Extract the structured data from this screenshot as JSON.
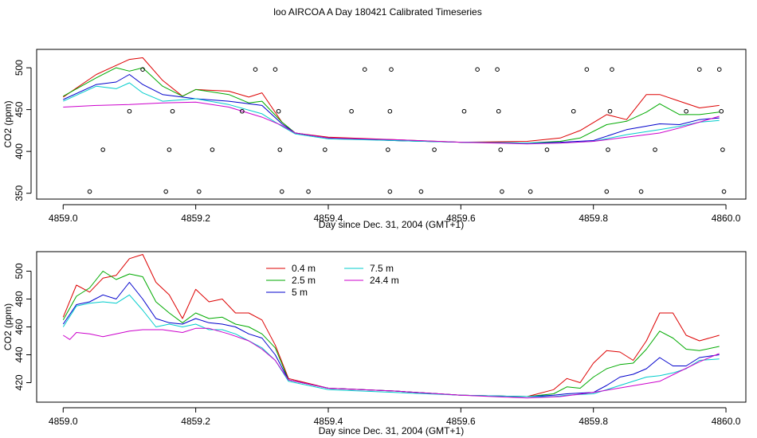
{
  "page_title": "loo AIRCOA A  Day 180421  Calibrated Timeseries",
  "chart_data": [
    {
      "type": "line",
      "title": "loo AIRCOA A  Day 180421  Calibrated Timeseries",
      "xlabel": "Day since Dec. 31, 2004 (GMT+1)",
      "ylabel": "CO2 (ppm)",
      "xlim": [
        4858.96,
        4860.03
      ],
      "ylim": [
        343,
        522
      ],
      "xticks": [
        4859.0,
        4859.2,
        4859.4,
        4859.6,
        4859.8,
        4860.0
      ],
      "xtick_labels": [
        "4859.0",
        "4859.2",
        "4859.4",
        "4859.6",
        "4859.8",
        "4860.0"
      ],
      "yticks": [
        350,
        400,
        450,
        500
      ],
      "ytick_labels": [
        "350",
        "400",
        "450",
        "500"
      ],
      "grid": false,
      "series": [
        {
          "name": "0.4 m",
          "color": "#dd0000",
          "x": [
            4859.0,
            4859.05,
            4859.1,
            4859.12,
            4859.15,
            4859.18,
            4859.2,
            4859.25,
            4859.28,
            4859.3,
            4859.33,
            4859.35,
            4859.4,
            4859.5,
            4859.6,
            4859.7,
            4859.75,
            4859.78,
            4859.82,
            4859.85,
            4859.88,
            4859.9,
            4859.93,
            4859.96,
            4859.99
          ],
          "y": [
            465,
            492,
            510,
            512,
            485,
            466,
            474,
            472,
            465,
            470,
            435,
            422,
            417,
            414,
            411,
            412,
            416,
            425,
            444,
            438,
            468,
            468,
            460,
            452,
            455
          ]
        },
        {
          "name": "2.5 m",
          "color": "#00aa00",
          "x": [
            4859.0,
            4859.05,
            4859.08,
            4859.1,
            4859.12,
            4859.15,
            4859.18,
            4859.2,
            4859.25,
            4859.28,
            4859.3,
            4859.33,
            4859.35,
            4859.4,
            4859.5,
            4859.6,
            4859.7,
            4859.75,
            4859.78,
            4859.82,
            4859.85,
            4859.88,
            4859.9,
            4859.93,
            4859.96,
            4859.99
          ],
          "y": [
            466,
            488,
            500,
            496,
            500,
            478,
            466,
            474,
            468,
            458,
            460,
            435,
            422,
            416,
            413,
            411,
            410,
            412,
            416,
            432,
            436,
            447,
            457,
            444,
            444,
            447
          ]
        },
        {
          "name": "5 m",
          "color": "#0000cc",
          "x": [
            4859.0,
            4859.05,
            4859.08,
            4859.1,
            4859.12,
            4859.15,
            4859.2,
            4859.25,
            4859.3,
            4859.33,
            4859.35,
            4859.4,
            4859.5,
            4859.6,
            4859.7,
            4859.75,
            4859.8,
            4859.85,
            4859.9,
            4859.93,
            4859.96,
            4859.99
          ],
          "y": [
            462,
            480,
            483,
            492,
            480,
            468,
            463,
            460,
            455,
            433,
            422,
            416,
            413,
            411,
            410,
            411,
            413,
            426,
            433,
            432,
            438,
            440
          ]
        },
        {
          "name": "7.5 m",
          "color": "#00cccc",
          "x": [
            4859.0,
            4859.05,
            4859.08,
            4859.1,
            4859.12,
            4859.15,
            4859.2,
            4859.25,
            4859.3,
            4859.33,
            4859.35,
            4859.4,
            4859.5,
            4859.6,
            4859.7,
            4859.75,
            4859.8,
            4859.85,
            4859.9,
            4859.93,
            4859.96,
            4859.99
          ],
          "y": [
            460,
            478,
            475,
            482,
            470,
            460,
            463,
            456,
            445,
            430,
            421,
            415,
            413,
            411,
            410,
            410,
            412,
            420,
            426,
            430,
            435,
            437
          ]
        },
        {
          "name": "24.4 m",
          "color": "#cc00cc",
          "x": [
            4859.0,
            4859.05,
            4859.1,
            4859.15,
            4859.2,
            4859.25,
            4859.3,
            4859.33,
            4859.35,
            4859.4,
            4859.5,
            4859.6,
            4859.7,
            4859.75,
            4859.8,
            4859.85,
            4859.9,
            4859.93,
            4859.96,
            4859.99
          ],
          "y": [
            453,
            455,
            456,
            458,
            459,
            453,
            441,
            431,
            422,
            416,
            414,
            411,
            409,
            410,
            412,
            417,
            422,
            428,
            435,
            442
          ]
        }
      ],
      "scatter_points": {
        "color": "#000000",
        "x": [
          4859.04,
          4859.06,
          4859.1,
          4859.12,
          4859.155,
          4859.16,
          4859.165,
          4859.205,
          4859.225,
          4859.27,
          4859.29,
          4859.32,
          4859.325,
          4859.327,
          4859.33,
          4859.37,
          4859.395,
          4859.435,
          4859.455,
          4859.49,
          4859.493,
          4859.495,
          4859.493,
          4859.54,
          4859.56,
          4859.605,
          4859.625,
          4859.655,
          4859.657,
          4859.66,
          4859.662,
          4859.705,
          4859.73,
          4859.77,
          4859.79,
          4859.82,
          4859.822,
          4859.825,
          4859.828,
          4859.872,
          4859.893,
          4859.94,
          4859.96,
          4859.99,
          4859.993,
          4859.995,
          4859.997
        ],
        "y": [
          352,
          402,
          448,
          498,
          352,
          402,
          448,
          352,
          402,
          448,
          498,
          498,
          448,
          402,
          352,
          352,
          402,
          448,
          498,
          402,
          448,
          498,
          352,
          352,
          402,
          448,
          498,
          498,
          448,
          402,
          352,
          352,
          402,
          448,
          498,
          352,
          402,
          448,
          498,
          352,
          402,
          448,
          498,
          498,
          448,
          402,
          352
        ]
      }
    },
    {
      "type": "line",
      "title": "",
      "xlabel": "Day since Dec. 31, 2004 (GMT+1)",
      "ylabel": "CO2 (ppm)",
      "xlim": [
        4858.96,
        4860.03
      ],
      "ylim": [
        406,
        514
      ],
      "xticks": [
        4859.0,
        4859.2,
        4859.4,
        4859.6,
        4859.8,
        4860.0
      ],
      "xtick_labels": [
        "4859.0",
        "4859.2",
        "4859.4",
        "4859.6",
        "4859.8",
        "4860.0"
      ],
      "yticks": [
        420,
        440,
        460,
        480,
        500
      ],
      "ytick_labels": [
        "420",
        "440",
        "460",
        "480",
        "500"
      ],
      "grid": false,
      "legend": {
        "placement": "top-center",
        "entries": [
          {
            "label": "0.4 m",
            "color": "#dd0000"
          },
          {
            "label": "2.5 m",
            "color": "#00aa00"
          },
          {
            "label": "5 m",
            "color": "#0000cc"
          },
          {
            "label": "7.5 m",
            "color": "#00cccc"
          },
          {
            "label": "24.4 m",
            "color": "#cc00cc"
          }
        ]
      },
      "series": [
        {
          "name": "0.4 m",
          "color": "#dd0000",
          "x": [
            4859.0,
            4859.02,
            4859.04,
            4859.06,
            4859.08,
            4859.1,
            4859.12,
            4859.14,
            4859.16,
            4859.18,
            4859.2,
            4859.22,
            4859.24,
            4859.26,
            4859.28,
            4859.3,
            4859.32,
            4859.34,
            4859.4,
            4859.5,
            4859.6,
            4859.7,
            4859.74,
            4859.76,
            4859.78,
            4859.8,
            4859.82,
            4859.84,
            4859.86,
            4859.88,
            4859.9,
            4859.92,
            4859.94,
            4859.96,
            4859.99
          ],
          "y": [
            467,
            490,
            485,
            495,
            497,
            509,
            512,
            492,
            483,
            466,
            487,
            478,
            480,
            470,
            470,
            465,
            447,
            423,
            416,
            414,
            411,
            410,
            415,
            423,
            420,
            434,
            443,
            442,
            436,
            450,
            470,
            470,
            454,
            450,
            454
          ]
        },
        {
          "name": "2.5 m",
          "color": "#00aa00",
          "x": [
            4859.0,
            4859.02,
            4859.04,
            4859.06,
            4859.08,
            4859.1,
            4859.12,
            4859.14,
            4859.16,
            4859.18,
            4859.2,
            4859.22,
            4859.24,
            4859.26,
            4859.28,
            4859.3,
            4859.32,
            4859.34,
            4859.4,
            4859.5,
            4859.6,
            4859.7,
            4859.74,
            4859.76,
            4859.78,
            4859.8,
            4859.82,
            4859.84,
            4859.86,
            4859.88,
            4859.9,
            4859.92,
            4859.94,
            4859.96,
            4859.99
          ],
          "y": [
            465,
            482,
            488,
            500,
            494,
            498,
            496,
            478,
            470,
            463,
            470,
            466,
            467,
            462,
            460,
            455,
            445,
            422,
            416,
            414,
            411,
            410,
            412,
            417,
            416,
            424,
            430,
            433,
            434,
            444,
            457,
            452,
            444,
            443,
            446
          ]
        },
        {
          "name": "5 m",
          "color": "#0000cc",
          "x": [
            4859.0,
            4859.02,
            4859.04,
            4859.06,
            4859.08,
            4859.1,
            4859.12,
            4859.14,
            4859.16,
            4859.18,
            4859.2,
            4859.22,
            4859.24,
            4859.26,
            4859.28,
            4859.3,
            4859.32,
            4859.34,
            4859.4,
            4859.5,
            4859.6,
            4859.7,
            4859.74,
            4859.76,
            4859.8,
            4859.82,
            4859.84,
            4859.86,
            4859.88,
            4859.9,
            4859.92,
            4859.94,
            4859.96,
            4859.99
          ],
          "y": [
            462,
            476,
            478,
            483,
            480,
            492,
            480,
            466,
            463,
            462,
            466,
            463,
            462,
            460,
            455,
            452,
            440,
            422,
            416,
            414,
            411,
            410,
            411,
            412,
            413,
            418,
            424,
            426,
            430,
            438,
            432,
            432,
            438,
            440
          ]
        },
        {
          "name": "7.5 m",
          "color": "#00cccc",
          "x": [
            4859.0,
            4859.02,
            4859.04,
            4859.06,
            4859.08,
            4859.1,
            4859.12,
            4859.14,
            4859.16,
            4859.18,
            4859.2,
            4859.22,
            4859.24,
            4859.26,
            4859.28,
            4859.3,
            4859.32,
            4859.34,
            4859.4,
            4859.5,
            4859.6,
            4859.7,
            4859.74,
            4859.76,
            4859.8,
            4859.84,
            4859.88,
            4859.9,
            4859.92,
            4859.94,
            4859.96,
            4859.99
          ],
          "y": [
            460,
            475,
            477,
            478,
            477,
            483,
            472,
            460,
            462,
            460,
            462,
            458,
            458,
            455,
            450,
            445,
            436,
            421,
            415,
            413,
            411,
            410,
            410,
            411,
            412,
            418,
            424,
            425,
            427,
            430,
            436,
            437
          ]
        },
        {
          "name": "24.4 m",
          "color": "#cc00cc",
          "x": [
            4859.0,
            4859.01,
            4859.02,
            4859.04,
            4859.06,
            4859.08,
            4859.1,
            4859.12,
            4859.15,
            4859.18,
            4859.2,
            4859.22,
            4859.25,
            4859.28,
            4859.3,
            4859.32,
            4859.34,
            4859.4,
            4859.5,
            4859.6,
            4859.7,
            4859.75,
            4859.8,
            4859.85,
            4859.9,
            4859.93,
            4859.96,
            4859.99
          ],
          "y": [
            454,
            451,
            456,
            455,
            453,
            455,
            457,
            458,
            458,
            456,
            459,
            459,
            455,
            450,
            444,
            436,
            422,
            416,
            414,
            411,
            409,
            410,
            413,
            417,
            421,
            428,
            435,
            441
          ]
        }
      ]
    }
  ]
}
